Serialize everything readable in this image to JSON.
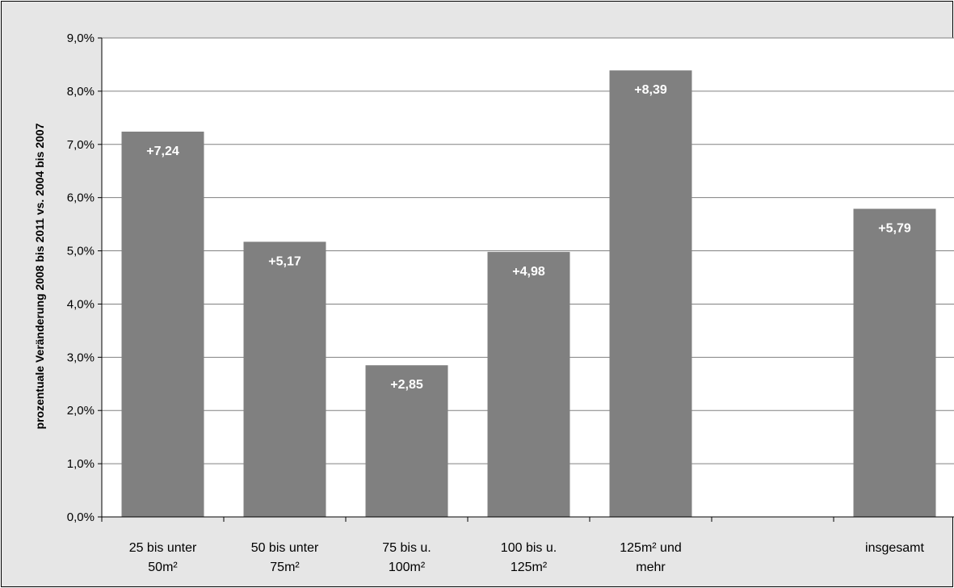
{
  "chart_data": {
    "type": "bar",
    "title": "",
    "xlabel": "",
    "ylabel": "prozentuale Veränderung 2008 bis 2011 vs. 2004 bis 2007",
    "ylim": [
      0,
      9
    ],
    "ytick_values": [
      0,
      1,
      2,
      3,
      4,
      5,
      6,
      7,
      8,
      9
    ],
    "ytick_labels": [
      "0,0%",
      "1,0%",
      "2,0%",
      "3,0%",
      "4,0%",
      "5,0%",
      "6,0%",
      "7,0%",
      "8,0%",
      "9,0%"
    ],
    "grid": true,
    "legend": "none",
    "categories": [
      [
        "25 bis unter",
        "50m²"
      ],
      [
        "50 bis unter",
        "75m²"
      ],
      [
        "75 bis u.",
        "100m²"
      ],
      [
        "100 bis u.",
        "125m²"
      ],
      [
        "125m² und",
        "mehr"
      ],
      [
        ""
      ],
      [
        "insgesamt"
      ]
    ],
    "values": [
      7.24,
      5.17,
      2.85,
      4.98,
      8.39,
      null,
      5.79
    ],
    "data_labels": [
      "+7,24",
      "+5,17",
      "+2,85",
      "+4,98",
      "+8,39",
      "",
      "+5,79"
    ],
    "colors": {
      "bar": "#808080",
      "plot_bg": "#ffffff",
      "frame_bg": "#e6e6e6",
      "grid": "#808080",
      "data_label": "#ffffff"
    }
  }
}
